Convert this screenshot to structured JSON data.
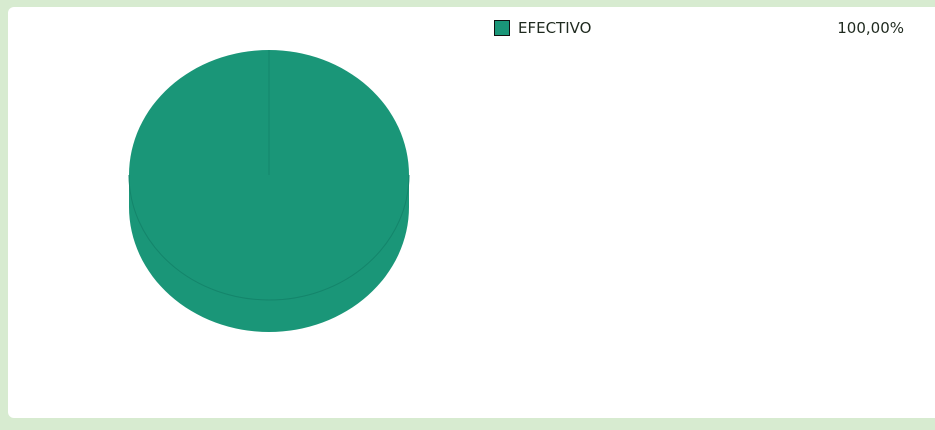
{
  "chart_data": {
    "type": "pie",
    "slices": [
      {
        "label": "EFECTIVO",
        "value": 100,
        "display_value": "100,00%",
        "color": "#1a9678"
      }
    ],
    "legend_position": "top-right"
  },
  "colors": {
    "background": "#d7ebd0",
    "panel": "#ffffff",
    "slice_primary": "#1a9678",
    "slice_side": "#1a9678",
    "slice_seam": "#14856b"
  }
}
